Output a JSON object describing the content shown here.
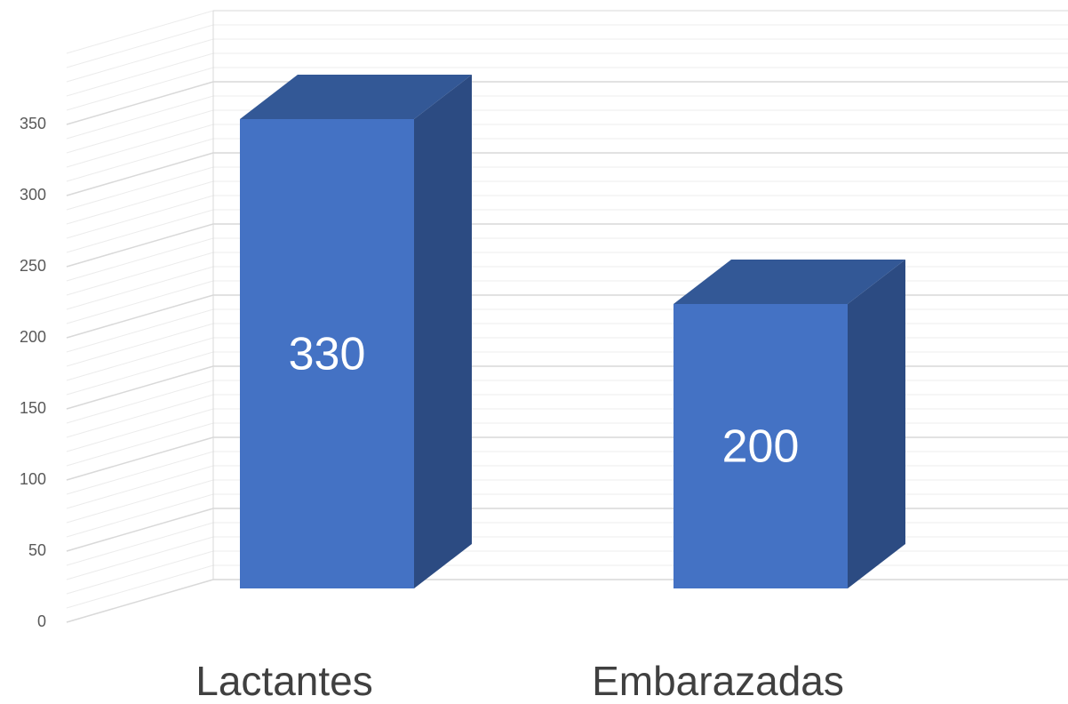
{
  "chart_data": {
    "type": "bar3d",
    "categories": [
      "Lactantes",
      "Embarazadas"
    ],
    "values": [
      330,
      200
    ],
    "color": "#4472c4",
    "ylim": [
      0,
      400
    ],
    "yticks": [
      0,
      50,
      100,
      150,
      200,
      250,
      300,
      350
    ],
    "grid": true
  }
}
